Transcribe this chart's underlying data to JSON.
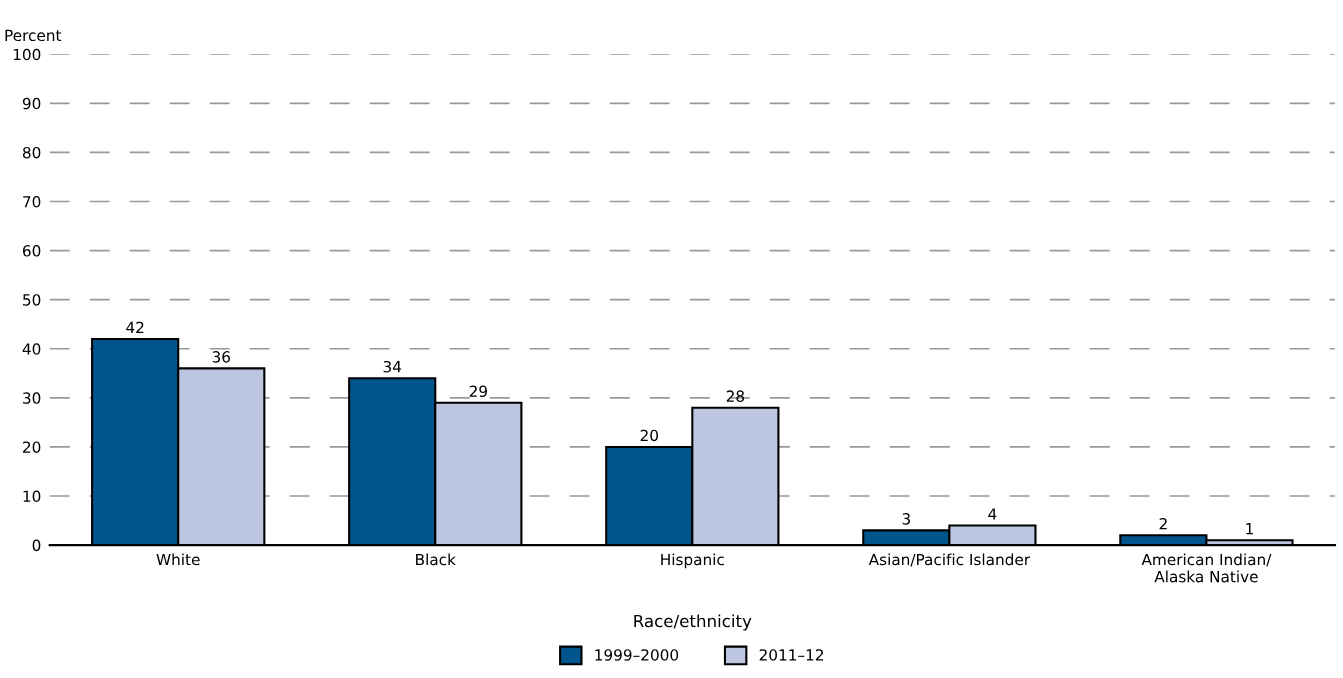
{
  "chart_data": {
    "type": "bar",
    "ylabel": "Percent",
    "xlabel": "Race/ethnicity",
    "categories": [
      "White",
      "Black",
      "Hispanic",
      "Asian/Pacific Islander",
      "American Indian/\nAlaska Native"
    ],
    "series": [
      {
        "name": "1999–2000",
        "color": "#00558c",
        "values": [
          42,
          34,
          20,
          3,
          2
        ]
      },
      {
        "name": "2011–12",
        "color": "#bcc6e0",
        "values": [
          36,
          29,
          28,
          4,
          1
        ]
      }
    ],
    "ylim": [
      0,
      100
    ],
    "yticks": [
      0,
      10,
      20,
      30,
      40,
      50,
      60,
      70,
      80,
      90,
      100
    ],
    "grid": "y",
    "legend": "bottom",
    "data_labels": true
  }
}
